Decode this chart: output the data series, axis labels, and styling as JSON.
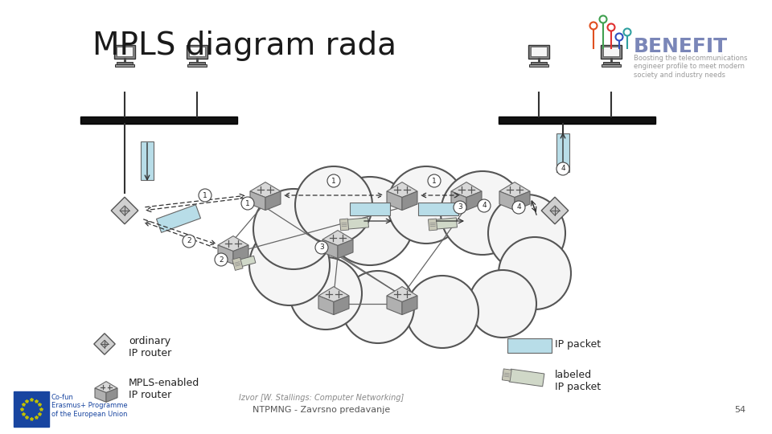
{
  "title": "MPLS diagram rada",
  "title_fontsize": 28,
  "title_color": "#1a1a1a",
  "bg_color": "#ffffff",
  "footer_text": "NTPMNG - Zavrsno predavanje",
  "footer_source": "Izvor [W. Stallings: Computer Networking]",
  "footer_page": "54",
  "benefit_text": "BENEFIT",
  "benefit_color": "#7a86b8",
  "benefit_subtitle": "Boosting the telecommunications\nengineer profile to meet modern\nsociety and industry needs",
  "legend_ordinary_label": "ordinary\nIP router",
  "legend_mpls_label": "MPLS-enabled\nIP router",
  "legend_ip_packet_label": "IP packet",
  "legend_labeled_label": "labeled\nIP packet"
}
